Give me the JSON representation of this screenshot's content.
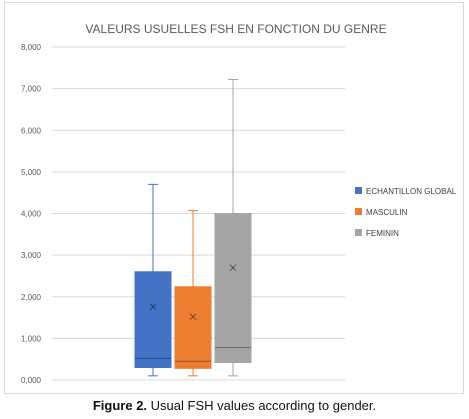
{
  "chart_data": {
    "type": "box",
    "title": "VALEURS USUELLES FSH EN FONCTION DU GENRE",
    "ylim": [
      0,
      8
    ],
    "y_ticks": [
      "0,000",
      "1,000",
      "2,000",
      "3,000",
      "4,000",
      "5,000",
      "6,000",
      "7,000",
      "8,000"
    ],
    "grid": true,
    "legend_position": "right",
    "series": [
      {
        "name": "ECHANTILLON GLOBAL",
        "color": "#4472c4",
        "min": 0.1,
        "q1": 0.3,
        "median": 0.52,
        "q3": 2.6,
        "max": 4.7,
        "mean": 1.76
      },
      {
        "name": "MASCULIN",
        "color": "#ed7d31",
        "min": 0.1,
        "q1": 0.28,
        "median": 0.45,
        "q3": 2.24,
        "max": 4.07,
        "mean": 1.52
      },
      {
        "name": "FEMININ",
        "color": "#a5a5a5",
        "min": 0.1,
        "q1": 0.42,
        "median": 0.78,
        "q3": 4.0,
        "max": 7.22,
        "mean": 2.7
      }
    ]
  },
  "caption": {
    "label": "Figure 2.",
    "text": "Usual FSH values according to gender."
  }
}
